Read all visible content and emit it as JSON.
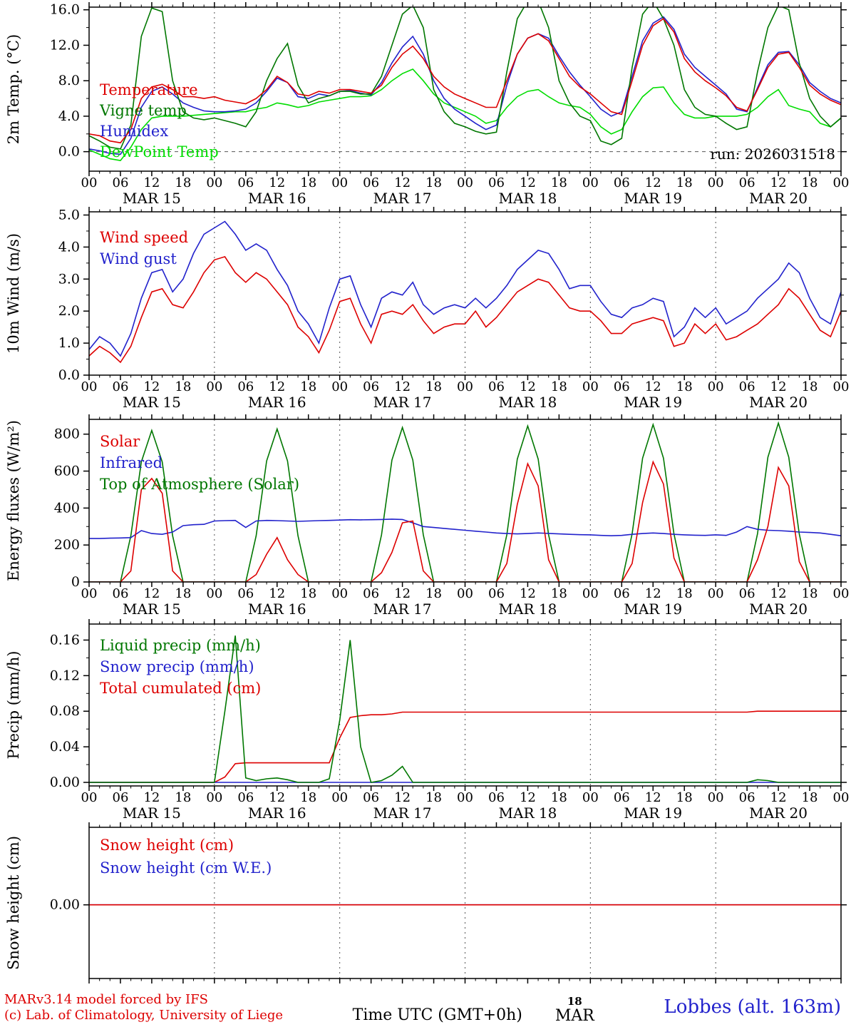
{
  "run_label": "run: 2026031518",
  "footer": {
    "credit_line1": "MARv3.14 model forced by IFS",
    "credit_line2": "(c) Lab. of Climatology, University of Liege",
    "time_axis_label": "Time UTC (GMT+0h)",
    "date_marker_day": "18",
    "date_marker_month": "MAR",
    "station_label": "Lobbes (alt. 163m)"
  },
  "colors": {
    "red": "#dd0000",
    "blue": "#2222cc",
    "green": "#007700",
    "lightgreen": "#00dd00",
    "axis": "#000000",
    "grid": "#555555"
  },
  "time_axis": {
    "hours_total": 144,
    "tick_labels": [
      "00",
      "06",
      "12",
      "18"
    ],
    "day_labels": [
      "MAR 15",
      "MAR 16",
      "MAR 17",
      "MAR 18",
      "MAR 19",
      "MAR 20"
    ]
  },
  "chart_data": [
    {
      "type": "line",
      "ylabel": "2m Temp. (°C)",
      "ylim": [
        -2.2,
        16.3
      ],
      "yticks": [
        {
          "v": 16,
          "label": "16.0"
        },
        {
          "v": 12,
          "label": "12.0"
        },
        {
          "v": 8,
          "label": "8.0"
        },
        {
          "v": 4,
          "label": "4.0"
        },
        {
          "v": 0,
          "label": "0.0"
        }
      ],
      "zero_line": true,
      "x_step": 2,
      "series": [
        {
          "name": "Temperature",
          "color": "red",
          "values": [
            2.0,
            1.8,
            1.2,
            1.0,
            2.5,
            6.0,
            7.3,
            7.6,
            7.0,
            6.2,
            6.2,
            6.0,
            6.2,
            5.8,
            5.6,
            5.4,
            6.0,
            7.0,
            8.5,
            7.8,
            6.5,
            6.3,
            6.8,
            6.6,
            7.0,
            7.0,
            6.8,
            6.6,
            7.5,
            9.5,
            11.0,
            11.9,
            10.5,
            8.5,
            7.3,
            6.5,
            6.0,
            5.5,
            5.0,
            5.0,
            8.0,
            11.0,
            12.8,
            13.3,
            12.5,
            10.5,
            8.5,
            7.3,
            6.5,
            5.5,
            4.5,
            4.2,
            8.0,
            12.0,
            14.2,
            15.0,
            13.5,
            10.5,
            9.0,
            8.0,
            7.2,
            6.3,
            5.0,
            4.6,
            7.0,
            9.5,
            11.0,
            11.2,
            9.5,
            7.5,
            6.5,
            5.8,
            5.3
          ]
        },
        {
          "name": "Vigne temp",
          "color": "green",
          "values": [
            1.8,
            1.2,
            0.5,
            0.3,
            3.0,
            13.0,
            16.2,
            15.8,
            8.0,
            4.5,
            3.8,
            3.6,
            3.8,
            3.5,
            3.2,
            2.8,
            4.5,
            8.0,
            10.5,
            12.2,
            7.5,
            5.5,
            6.0,
            6.3,
            6.8,
            6.8,
            6.5,
            6.5,
            8.5,
            12.0,
            15.5,
            16.5,
            14.0,
            7.0,
            4.5,
            3.2,
            2.8,
            2.3,
            2.0,
            2.2,
            9.0,
            15.0,
            17.0,
            17.0,
            14.0,
            8.0,
            5.5,
            4.0,
            3.5,
            1.2,
            0.8,
            1.5,
            9.5,
            15.5,
            17.0,
            15.0,
            12.0,
            7.0,
            5.0,
            4.2,
            4.0,
            3.2,
            2.5,
            2.8,
            9.0,
            14.0,
            16.5,
            16.0,
            10.0,
            6.0,
            4.0,
            2.8,
            3.8
          ]
        },
        {
          "name": "Humidex",
          "color": "blue",
          "values": [
            0.3,
            0.1,
            -0.2,
            -0.3,
            1.5,
            5.0,
            6.8,
            7.3,
            6.5,
            5.5,
            5.0,
            4.6,
            4.5,
            4.5,
            4.6,
            4.8,
            5.5,
            6.8,
            8.3,
            7.8,
            6.2,
            6.0,
            6.5,
            6.3,
            6.8,
            6.9,
            6.6,
            6.4,
            7.8,
            10.0,
            11.8,
            13.0,
            11.0,
            8.0,
            6.0,
            4.8,
            4.0,
            3.2,
            2.5,
            3.0,
            7.5,
            11.0,
            12.8,
            13.3,
            12.8,
            10.8,
            9.0,
            7.5,
            6.2,
            4.8,
            4.0,
            4.5,
            8.5,
            12.5,
            14.5,
            15.2,
            13.8,
            11.0,
            9.5,
            8.5,
            7.5,
            6.5,
            4.8,
            4.5,
            7.2,
            9.8,
            11.2,
            11.3,
            9.8,
            7.8,
            6.8,
            6.0,
            5.5
          ]
        },
        {
          "name": "DewPoint Temp",
          "color": "lightgreen",
          "values": [
            0.2,
            -0.3,
            -0.8,
            -1.0,
            0.5,
            2.5,
            3.8,
            4.0,
            4.0,
            4.0,
            4.1,
            4.2,
            4.3,
            4.4,
            4.5,
            4.5,
            4.8,
            5.0,
            5.5,
            5.3,
            5.0,
            5.2,
            5.6,
            5.8,
            6.0,
            6.2,
            6.2,
            6.3,
            7.0,
            8.0,
            8.8,
            9.3,
            8.0,
            6.5,
            5.5,
            5.0,
            4.5,
            4.0,
            3.2,
            3.5,
            5.0,
            6.2,
            6.8,
            7.0,
            6.2,
            5.5,
            5.2,
            5.0,
            4.2,
            2.8,
            2.0,
            2.5,
            4.5,
            6.2,
            7.2,
            7.3,
            5.5,
            4.2,
            3.8,
            3.8,
            4.0,
            4.0,
            4.0,
            4.2,
            5.0,
            6.2,
            7.0,
            5.2,
            4.8,
            4.5,
            3.2,
            2.8,
            3.8
          ]
        }
      ]
    },
    {
      "type": "line",
      "ylabel": "10m Wind (m/s)",
      "ylim": [
        0,
        5.1
      ],
      "yticks": [
        {
          "v": 5,
          "label": "5.0"
        },
        {
          "v": 4,
          "label": "4.0"
        },
        {
          "v": 3,
          "label": "3.0"
        },
        {
          "v": 2,
          "label": "2.0"
        },
        {
          "v": 1,
          "label": "1.0"
        },
        {
          "v": 0,
          "label": "0.0"
        }
      ],
      "zero_line": false,
      "x_step": 2,
      "series": [
        {
          "name": "Wind speed",
          "color": "red",
          "values": [
            0.6,
            0.9,
            0.7,
            0.4,
            0.9,
            1.8,
            2.6,
            2.7,
            2.2,
            2.1,
            2.6,
            3.2,
            3.6,
            3.7,
            3.2,
            2.9,
            3.2,
            3.0,
            2.6,
            2.2,
            1.5,
            1.2,
            0.7,
            1.4,
            2.3,
            2.4,
            1.6,
            1.0,
            1.9,
            2.0,
            1.9,
            2.2,
            1.7,
            1.3,
            1.5,
            1.6,
            1.6,
            2.0,
            1.5,
            1.8,
            2.2,
            2.6,
            2.8,
            3.0,
            2.9,
            2.5,
            2.1,
            2.0,
            2.0,
            1.7,
            1.3,
            1.3,
            1.6,
            1.7,
            1.8,
            1.7,
            0.9,
            1.0,
            1.6,
            1.3,
            1.6,
            1.1,
            1.2,
            1.4,
            1.6,
            1.9,
            2.2,
            2.7,
            2.4,
            1.9,
            1.4,
            1.2,
            2.0
          ]
        },
        {
          "name": "Wind gust",
          "color": "blue",
          "values": [
            0.8,
            1.2,
            1.0,
            0.6,
            1.3,
            2.4,
            3.2,
            3.3,
            2.6,
            3.0,
            3.8,
            4.4,
            4.6,
            4.8,
            4.4,
            3.9,
            4.1,
            3.9,
            3.3,
            2.8,
            2.0,
            1.6,
            1.0,
            2.1,
            3.0,
            3.1,
            2.2,
            1.5,
            2.4,
            2.6,
            2.5,
            2.9,
            2.2,
            1.9,
            2.1,
            2.2,
            2.1,
            2.4,
            2.1,
            2.4,
            2.8,
            3.3,
            3.6,
            3.9,
            3.8,
            3.3,
            2.7,
            2.8,
            2.8,
            2.3,
            1.9,
            1.8,
            2.1,
            2.2,
            2.4,
            2.3,
            1.2,
            1.5,
            2.1,
            1.8,
            2.1,
            1.6,
            1.8,
            2.0,
            2.4,
            2.7,
            3.0,
            3.5,
            3.2,
            2.4,
            1.8,
            1.6,
            2.6
          ]
        }
      ]
    },
    {
      "type": "line",
      "ylabel": "Energy fluxes (W/m²)",
      "ylim": [
        0,
        880
      ],
      "yticks": [
        {
          "v": 800,
          "label": "800"
        },
        {
          "v": 600,
          "label": "600"
        },
        {
          "v": 400,
          "label": "400"
        },
        {
          "v": 200,
          "label": "200"
        },
        {
          "v": 0,
          "label": "0"
        }
      ],
      "zero_line": false,
      "x_step": 2,
      "series": [
        {
          "name": "Solar",
          "color": "red",
          "values": [
            0,
            0,
            0,
            0,
            60,
            500,
            560,
            480,
            60,
            0,
            0,
            0,
            0,
            0,
            0,
            0,
            40,
            150,
            240,
            120,
            40,
            0,
            0,
            0,
            0,
            0,
            0,
            0,
            50,
            160,
            320,
            330,
            60,
            0,
            0,
            0,
            0,
            0,
            0,
            0,
            100,
            420,
            640,
            520,
            120,
            0,
            0,
            0,
            0,
            0,
            0,
            0,
            100,
            430,
            650,
            530,
            130,
            0,
            0,
            0,
            0,
            0,
            0,
            0,
            120,
            300,
            620,
            520,
            110,
            0,
            0,
            0,
            0
          ]
        },
        {
          "name": "Infrared",
          "color": "blue",
          "values": [
            235,
            235,
            237,
            238,
            240,
            278,
            262,
            258,
            270,
            305,
            310,
            312,
            330,
            332,
            333,
            295,
            330,
            333,
            332,
            330,
            328,
            330,
            332,
            333,
            335,
            337,
            336,
            337,
            338,
            340,
            338,
            320,
            300,
            295,
            290,
            285,
            280,
            275,
            270,
            265,
            262,
            260,
            262,
            265,
            263,
            260,
            258,
            256,
            255,
            252,
            250,
            252,
            258,
            262,
            265,
            262,
            258,
            255,
            253,
            252,
            255,
            252,
            270,
            300,
            285,
            280,
            278,
            275,
            270,
            268,
            265,
            258,
            250
          ]
        },
        {
          "name": "Top of Atmosphere (Solar)",
          "color": "green",
          "values": [
            0,
            0,
            0,
            0,
            250,
            650,
            820,
            650,
            250,
            0,
            0,
            0,
            0,
            0,
            0,
            0,
            250,
            655,
            828,
            655,
            250,
            0,
            0,
            0,
            0,
            0,
            0,
            0,
            255,
            660,
            836,
            660,
            255,
            0,
            0,
            0,
            0,
            0,
            0,
            0,
            255,
            665,
            844,
            665,
            255,
            0,
            0,
            0,
            0,
            0,
            0,
            0,
            260,
            670,
            852,
            670,
            260,
            0,
            0,
            0,
            0,
            0,
            0,
            0,
            260,
            675,
            860,
            675,
            260,
            0,
            0,
            0,
            0
          ]
        }
      ]
    },
    {
      "type": "line",
      "ylabel": "Precip (mm/h)",
      "ylim": [
        -0.004,
        0.178
      ],
      "yticks": [
        {
          "v": 0.16,
          "label": "0.16"
        },
        {
          "v": 0.12,
          "label": "0.12"
        },
        {
          "v": 0.08,
          "label": "0.08"
        },
        {
          "v": 0.04,
          "label": "0.04"
        },
        {
          "v": 0,
          "label": "0.00"
        }
      ],
      "zero_line": false,
      "x_step": 2,
      "series": [
        {
          "name": "Liquid precip (mm/h)",
          "color": "green",
          "values": [
            0,
            0,
            0,
            0,
            0,
            0,
            0,
            0,
            0,
            0,
            0,
            0,
            0,
            0.08,
            0.165,
            0.005,
            0.002,
            0.004,
            0.005,
            0.003,
            0,
            0,
            0,
            0.004,
            0.07,
            0.16,
            0.04,
            0,
            0.002,
            0.008,
            0.018,
            0,
            0,
            0,
            0,
            0,
            0,
            0,
            0,
            0,
            0,
            0,
            0,
            0,
            0,
            0,
            0,
            0,
            0,
            0,
            0,
            0,
            0,
            0,
            0,
            0,
            0,
            0,
            0,
            0,
            0,
            0,
            0,
            0,
            0.003,
            0.002,
            0,
            0,
            0,
            0,
            0,
            0,
            0
          ]
        },
        {
          "name": "Snow precip (mm/h)",
          "color": "blue",
          "constant": 0
        },
        {
          "name": "Total cumulated (cm)",
          "color": "red",
          "values": [
            0,
            0,
            0,
            0,
            0,
            0,
            0,
            0,
            0,
            0,
            0,
            0,
            0,
            0.006,
            0.021,
            0.022,
            0.022,
            0.022,
            0.022,
            0.022,
            0.022,
            0.022,
            0.022,
            0.022,
            0.05,
            0.073,
            0.075,
            0.076,
            0.076,
            0.077,
            0.079,
            0.079,
            0.079,
            0.079,
            0.079,
            0.079,
            0.079,
            0.079,
            0.079,
            0.079,
            0.079,
            0.079,
            0.079,
            0.079,
            0.079,
            0.079,
            0.079,
            0.079,
            0.079,
            0.079,
            0.079,
            0.079,
            0.079,
            0.079,
            0.079,
            0.079,
            0.079,
            0.079,
            0.079,
            0.079,
            0.079,
            0.079,
            0.079,
            0.079,
            0.08,
            0.08,
            0.08,
            0.08,
            0.08,
            0.08,
            0.08,
            0.08,
            0.08
          ]
        }
      ]
    },
    {
      "type": "line",
      "ylabel": "Snow height (cm)",
      "ylim": [
        -0.95,
        1.0
      ],
      "yticks": [
        {
          "v": 0,
          "label": "0.00"
        }
      ],
      "zero_line": false,
      "x_step": 2,
      "series": [
        {
          "name": "Snow height (cm)",
          "color": "red",
          "constant": 0
        },
        {
          "name": "Snow height (cm W.E.)",
          "color": "blue",
          "constant": 0
        }
      ]
    }
  ]
}
